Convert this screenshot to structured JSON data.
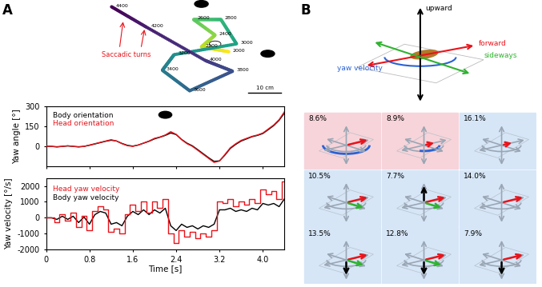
{
  "panel_labels": [
    "A",
    "B"
  ],
  "trajectory": {
    "time_labels": [
      2000,
      2200,
      2400,
      2600,
      2800,
      3000,
      3200,
      3400,
      3600,
      3800,
      4000,
      4200,
      4400
    ],
    "annotation": "Saccadic turns",
    "scale_bar": "10 cm"
  },
  "chart_data": [
    {
      "type": "line",
      "ylabel": "Yaw angle [°]",
      "tick_labels": "y",
      "x": [
        0.0,
        0.1,
        0.2,
        0.3,
        0.4,
        0.5,
        0.6,
        0.7,
        0.8,
        0.9,
        1.0,
        1.1,
        1.2,
        1.3,
        1.4,
        1.5,
        1.6,
        1.7,
        1.8,
        1.9,
        2.0,
        2.1,
        2.2,
        2.3,
        2.4,
        2.5,
        2.6,
        2.7,
        2.8,
        2.9,
        3.0,
        3.1,
        3.2,
        3.3,
        3.4,
        3.5,
        3.6,
        3.7,
        3.8,
        3.9,
        4.0,
        4.1,
        4.2,
        4.3,
        4.4
      ],
      "series": [
        {
          "name": "Body orientation",
          "color": "#000000",
          "values": [
            0,
            0,
            -3,
            0,
            3,
            0,
            -3,
            0,
            8,
            18,
            28,
            38,
            46,
            40,
            22,
            8,
            2,
            10,
            24,
            38,
            56,
            68,
            82,
            100,
            88,
            52,
            24,
            4,
            -25,
            -55,
            -85,
            -112,
            -108,
            -65,
            -15,
            15,
            40,
            56,
            72,
            82,
            96,
            125,
            155,
            195,
            250
          ]
        },
        {
          "name": "Head orientation",
          "color": "#e8141b",
          "values": [
            0,
            0,
            -5,
            0,
            5,
            0,
            -5,
            0,
            10,
            20,
            30,
            40,
            50,
            40,
            20,
            5,
            0,
            10,
            25,
            40,
            60,
            70,
            85,
            110,
            90,
            50,
            20,
            0,
            -30,
            -60,
            -90,
            -120,
            -110,
            -60,
            -10,
            20,
            45,
            60,
            75,
            85,
            100,
            130,
            160,
            200,
            260
          ]
        }
      ],
      "xlim": [
        0,
        4.4
      ],
      "xticks": [
        0,
        0.8,
        1.6,
        2.4,
        3.2,
        4.0
      ],
      "ylim": [
        -150,
        300
      ],
      "yticks": [
        0,
        150,
        300
      ]
    },
    {
      "type": "line",
      "ylabel": "Yaw velocity [°/s]",
      "xlabel": "Time [s]",
      "x": [
        0.0,
        0.1,
        0.2,
        0.3,
        0.4,
        0.5,
        0.6,
        0.7,
        0.8,
        0.9,
        1.0,
        1.1,
        1.2,
        1.3,
        1.4,
        1.5,
        1.6,
        1.7,
        1.8,
        1.9,
        2.0,
        2.1,
        2.2,
        2.3,
        2.4,
        2.5,
        2.6,
        2.7,
        2.8,
        2.9,
        3.0,
        3.1,
        3.2,
        3.3,
        3.4,
        3.5,
        3.6,
        3.7,
        3.8,
        3.9,
        4.0,
        4.1,
        4.2,
        4.3,
        4.4
      ],
      "series": [
        {
          "name": "Head yaw velocity",
          "color": "#e8141b",
          "values": [
            0,
            0,
            -300,
            200,
            -200,
            300,
            -600,
            100,
            -800,
            400,
            700,
            500,
            -900,
            -700,
            -1000,
            200,
            800,
            400,
            1000,
            300,
            1000,
            600,
            1200,
            -1000,
            -1600,
            -800,
            -1200,
            -900,
            -1300,
            -1000,
            -1200,
            -800,
            1000,
            900,
            1200,
            700,
            1000,
            800,
            1200,
            900,
            1800,
            1500,
            1700,
            1200,
            2300
          ]
        },
        {
          "name": "Body yaw velocity",
          "color": "#000000",
          "values": [
            0,
            0,
            -100,
            100,
            -100,
            100,
            -300,
            50,
            -400,
            200,
            400,
            300,
            -400,
            -300,
            -500,
            100,
            400,
            200,
            500,
            200,
            500,
            300,
            600,
            -500,
            -800,
            -400,
            -600,
            -500,
            -700,
            -500,
            -600,
            -400,
            500,
            500,
            600,
            400,
            500,
            400,
            600,
            500,
            900,
            800,
            900,
            700,
            1200
          ]
        }
      ],
      "xlim": [
        0,
        4.4
      ],
      "xticks": [
        0,
        0.8,
        1.6,
        2.4,
        3.2,
        4.0
      ],
      "ylim": [
        -2000,
        2500
      ],
      "yticks": [
        -2000,
        -1000,
        0,
        1000,
        2000
      ]
    }
  ],
  "motion_diagram": {
    "axes": {
      "upward": "upward",
      "forward": "forward",
      "sideways": "sideways",
      "yaw": "yaw velocity"
    },
    "cells": [
      "8.6%",
      "8.9%",
      "16.1%",
      "10.5%",
      "7.7%",
      "14.0%",
      "13.5%",
      "12.8%",
      "7.9%"
    ]
  }
}
